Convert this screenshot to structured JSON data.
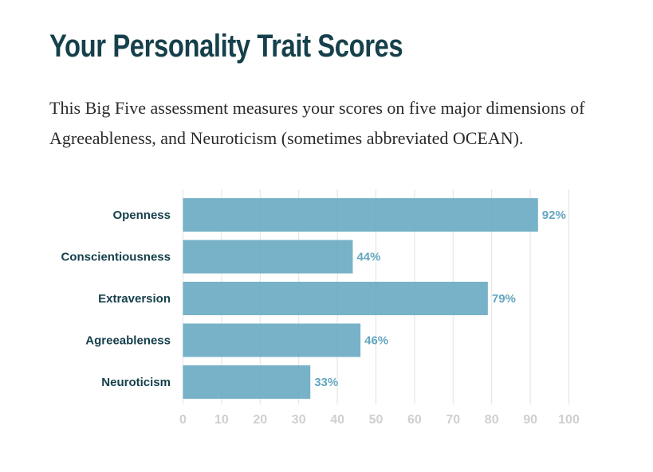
{
  "page": {
    "title": "Your Personality Trait Scores",
    "intro_line1": "This Big Five assessment measures your scores on five major dimensions of",
    "intro_line2": "Agreeableness, and Neuroticism (sometimes abbreviated OCEAN)."
  },
  "colors": {
    "title": "#16404b",
    "bar": "#64a7c0",
    "value_label": "#64a7c0",
    "grid": "#e2e2e2",
    "tick_label": "#cfcfcf"
  },
  "chart_data": {
    "type": "bar",
    "orientation": "horizontal",
    "categories": [
      "Openness",
      "Conscientiousness",
      "Extraversion",
      "Agreeableness",
      "Neuroticism"
    ],
    "values": [
      92,
      44,
      79,
      46,
      33
    ],
    "value_labels": [
      "92%",
      "44%",
      "79%",
      "46%",
      "33%"
    ],
    "xlim": [
      0,
      100
    ],
    "xticks": [
      "0",
      "10",
      "20",
      "30",
      "40",
      "50",
      "60",
      "70",
      "80",
      "90",
      "100"
    ],
    "grid": true
  }
}
